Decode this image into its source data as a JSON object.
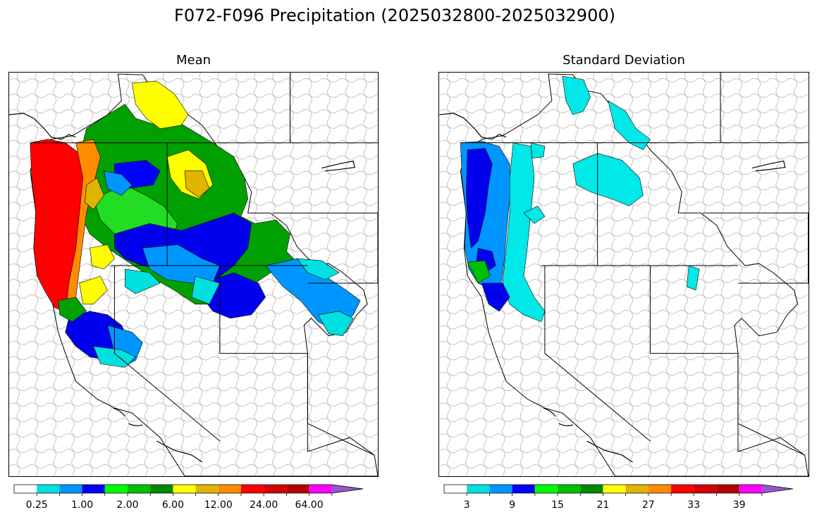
{
  "figure": {
    "title": "F072-F096 Precipitation (2025032800-2025032900)"
  },
  "panels": [
    {
      "title": "Mean",
      "colorbar": {
        "colors": [
          "#ffffff",
          "#00e0e0",
          "#0096ff",
          "#0000ff",
          "#00ff00",
          "#00c000",
          "#008800",
          "#ffff00",
          "#e0b400",
          "#ff8c00",
          "#ff0000",
          "#d40000",
          "#b40000",
          "#ff00ff",
          "#9955c9"
        ],
        "extend": "max",
        "tick_labels": [
          "0.25",
          "1.00",
          "2.00",
          "6.00",
          "12.00",
          "24.00",
          "64.00"
        ]
      }
    },
    {
      "title": "Standard Deviation",
      "colorbar": {
        "colors": [
          "#ffffff",
          "#00e0e0",
          "#0096ff",
          "#0000ff",
          "#00ff00",
          "#00c000",
          "#008800",
          "#ffff00",
          "#e0b400",
          "#ff8c00",
          "#ff0000",
          "#d40000",
          "#b40000",
          "#ff00ff",
          "#9955c9"
        ],
        "extend": "max",
        "tick_labels": [
          "3",
          "9",
          "15",
          "21",
          "27",
          "33",
          "39"
        ]
      }
    }
  ]
}
